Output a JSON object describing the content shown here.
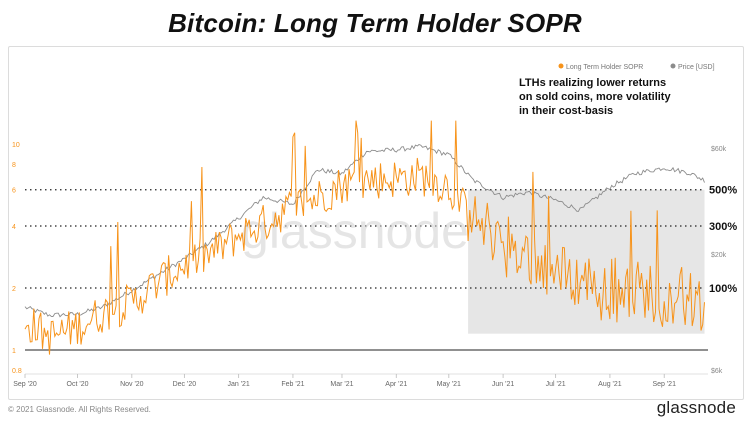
{
  "title": "Bitcoin: Long Term Holder SOPR",
  "legend": [
    "Long Term Holder SOPR",
    "Price [USD]"
  ],
  "annotation": [
    "LTHs realizing lower returns",
    "on sold coins, more volatility",
    "in their cost-basis"
  ],
  "levels": [
    "500%",
    "300%",
    "100%"
  ],
  "watermark": "glassnode",
  "footer": {
    "copyright": "© 2021 Glassnode. All Rights Reserved.",
    "brand": "glassnode"
  },
  "colors": {
    "sopr": "#f7931a",
    "price": "#8c8c8c",
    "shade": "#e6e6e6"
  },
  "chart_data": {
    "type": "line",
    "y_axis_scale": "log",
    "grid": false,
    "legend_position": "top-right",
    "x_ticks": [
      "Sep '20",
      "Oct '20",
      "Nov '20",
      "Dec '20",
      "Jan '21",
      "Feb '21",
      "Mar '21",
      "Apr '21",
      "May '21",
      "Jun '21",
      "Jul '21",
      "Aug '21",
      "Sep '21"
    ],
    "y_left_ticks": [
      "0.8",
      "1",
      "2",
      "4",
      "6",
      "8",
      "10"
    ],
    "y_left_tick_values": [
      0.8,
      1,
      2,
      4,
      6,
      8,
      10
    ],
    "y_right_ticks": [
      "$60k",
      "$20k",
      "$6k"
    ],
    "y_right_tick_values": [
      60000,
      20000,
      6000
    ],
    "reference_lines": [
      {
        "label": "500%",
        "value": 6
      },
      {
        "label": "300%",
        "value": 4
      },
      {
        "label": "100%",
        "value": 2
      },
      {
        "label": "",
        "value": 1
      }
    ],
    "shaded_region": {
      "x_start": "2021-05-12",
      "x_end": "2021-09-24",
      "y_low": 1.2,
      "y_high": 6
    },
    "series": [
      {
        "name": "Long Term Holder SOPR",
        "x": [
          "2020-09-01",
          "2020-09-15",
          "2020-10-01",
          "2020-10-15",
          "2020-11-01",
          "2020-11-15",
          "2020-12-01",
          "2020-12-15",
          "2021-01-01",
          "2021-01-15",
          "2021-02-01",
          "2021-02-15",
          "2021-03-01",
          "2021-03-15",
          "2021-04-01",
          "2021-04-15",
          "2021-05-01",
          "2021-05-15",
          "2021-06-01",
          "2021-06-15",
          "2021-07-01",
          "2021-07-15",
          "2021-08-01",
          "2021-08-15",
          "2021-09-01",
          "2021-09-15",
          "2021-09-24"
        ],
        "y": [
          1.4,
          1.15,
          1.3,
          1.5,
          1.7,
          2.1,
          2.6,
          2.9,
          3.6,
          4.1,
          5.0,
          5.5,
          6.4,
          6.7,
          6.8,
          7.0,
          6.2,
          4.2,
          3.5,
          2.9,
          2.4,
          2.2,
          2.1,
          2.0,
          1.9,
          1.8,
          1.5
        ]
      },
      {
        "name": "Price [USD]",
        "x": [
          "2020-09-01",
          "2020-09-15",
          "2020-10-01",
          "2020-10-15",
          "2020-11-01",
          "2020-11-15",
          "2020-12-01",
          "2020-12-15",
          "2021-01-01",
          "2021-01-15",
          "2021-02-01",
          "2021-02-15",
          "2021-03-01",
          "2021-03-15",
          "2021-04-01",
          "2021-04-15",
          "2021-05-01",
          "2021-05-15",
          "2021-06-01",
          "2021-06-15",
          "2021-07-01",
          "2021-07-15",
          "2021-08-01",
          "2021-08-15",
          "2021-09-01",
          "2021-09-15",
          "2021-09-24"
        ],
        "y": [
          11500,
          10600,
          10700,
          11500,
          13700,
          16000,
          19000,
          22500,
          29000,
          36000,
          33500,
          48000,
          46000,
          58000,
          59000,
          61000,
          56000,
          43000,
          36000,
          38000,
          35000,
          31500,
          40000,
          46000,
          49000,
          46500,
          43000
        ]
      }
    ]
  }
}
